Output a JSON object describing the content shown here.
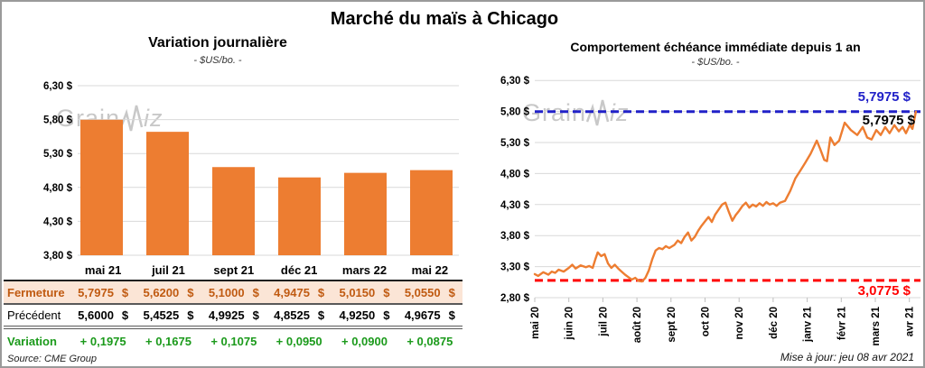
{
  "page": {
    "title": "Marché du maïs à Chicago",
    "watermark_part1": "Grain",
    "watermark_part2": "iz",
    "source_note": "Source: CME Group",
    "update_note": "Mise à jour: jeu 08 avr 2021"
  },
  "colors": {
    "accent_orange": "#ED7D31",
    "fermeture_text": "#C05A11",
    "fermeture_bg": "#FBE5D6",
    "variation_green": "#1B9A1B",
    "blue_line": "#2121C8",
    "red_line": "#FF0000",
    "grid": "#D9D9D9",
    "watermark": "#C8C8C8"
  },
  "chart_data": [
    {
      "type": "bar",
      "title": "Variation journalière",
      "subtitle": "- $US/bo. -",
      "categories": [
        "mai 21",
        "juil 21",
        "sept 21",
        "déc 21",
        "mars 22",
        "mai 22"
      ],
      "values": [
        5.7975,
        5.62,
        5.1,
        4.9475,
        5.015,
        5.055
      ],
      "ylim": [
        3.8,
        6.3
      ],
      "yticks": [
        {
          "value": 6.3,
          "label": "6,30 $"
        },
        {
          "value": 5.8,
          "label": "5,80 $"
        },
        {
          "value": 5.3,
          "label": "5,30 $"
        },
        {
          "value": 4.8,
          "label": "4,80 $"
        },
        {
          "value": 4.3,
          "label": "4,30 $"
        },
        {
          "value": 3.8,
          "label": "3,80 $"
        }
      ],
      "bar_color": "#ED7D31",
      "grid": true
    },
    {
      "type": "line",
      "title": "Comportement échéance immédiate depuis 1 an",
      "subtitle": "- $US/bo. -",
      "x_labels": [
        "mai 20",
        "juin 20",
        "juil 20",
        "août 20",
        "sept 20",
        "oct 20",
        "nov 20",
        "déc 20",
        "janv 21",
        "févr 21",
        "mars 21",
        "avr 21"
      ],
      "ylim": [
        2.8,
        6.3
      ],
      "yticks": [
        {
          "value": 6.3,
          "label": "6,30 $"
        },
        {
          "value": 5.8,
          "label": "5,80 $"
        },
        {
          "value": 5.3,
          "label": "5,30 $"
        },
        {
          "value": 4.8,
          "label": "4,80 $"
        },
        {
          "value": 4.3,
          "label": "4,30 $"
        },
        {
          "value": 3.8,
          "label": "3,80 $"
        },
        {
          "value": 3.3,
          "label": "3,30 $"
        },
        {
          "value": 2.8,
          "label": "2,80 $"
        }
      ],
      "series": [
        {
          "name": "échéance immédiate",
          "color": "#ED7D31",
          "points": [
            [
              0,
              3.18
            ],
            [
              0.1,
              3.15
            ],
            [
              0.25,
              3.21
            ],
            [
              0.4,
              3.17
            ],
            [
              0.5,
              3.22
            ],
            [
              0.6,
              3.2
            ],
            [
              0.7,
              3.25
            ],
            [
              0.85,
              3.22
            ],
            [
              1.0,
              3.28
            ],
            [
              1.1,
              3.33
            ],
            [
              1.2,
              3.27
            ],
            [
              1.35,
              3.32
            ],
            [
              1.5,
              3.29
            ],
            [
              1.6,
              3.31
            ],
            [
              1.7,
              3.28
            ],
            [
              1.78,
              3.42
            ],
            [
              1.85,
              3.53
            ],
            [
              1.95,
              3.47
            ],
            [
              2.05,
              3.5
            ],
            [
              2.15,
              3.35
            ],
            [
              2.25,
              3.28
            ],
            [
              2.35,
              3.33
            ],
            [
              2.45,
              3.27
            ],
            [
              2.55,
              3.22
            ],
            [
              2.65,
              3.17
            ],
            [
              2.75,
              3.13
            ],
            [
              2.85,
              3.09
            ],
            [
              2.95,
              3.12
            ],
            [
              3.05,
              3.07
            ],
            [
              3.15,
              3.06
            ],
            [
              3.25,
              3.12
            ],
            [
              3.35,
              3.24
            ],
            [
              3.45,
              3.42
            ],
            [
              3.55,
              3.56
            ],
            [
              3.65,
              3.6
            ],
            [
              3.75,
              3.58
            ],
            [
              3.85,
              3.63
            ],
            [
              3.95,
              3.6
            ],
            [
              4.1,
              3.65
            ],
            [
              4.2,
              3.72
            ],
            [
              4.3,
              3.68
            ],
            [
              4.4,
              3.78
            ],
            [
              4.5,
              3.85
            ],
            [
              4.6,
              3.72
            ],
            [
              4.7,
              3.78
            ],
            [
              4.8,
              3.88
            ],
            [
              4.9,
              3.96
            ],
            [
              5.0,
              4.03
            ],
            [
              5.1,
              4.1
            ],
            [
              5.2,
              4.02
            ],
            [
              5.3,
              4.14
            ],
            [
              5.4,
              4.22
            ],
            [
              5.5,
              4.3
            ],
            [
              5.6,
              4.33
            ],
            [
              5.7,
              4.18
            ],
            [
              5.8,
              4.04
            ],
            [
              5.9,
              4.13
            ],
            [
              6.0,
              4.2
            ],
            [
              6.1,
              4.28
            ],
            [
              6.2,
              4.33
            ],
            [
              6.3,
              4.25
            ],
            [
              6.4,
              4.3
            ],
            [
              6.5,
              4.27
            ],
            [
              6.6,
              4.32
            ],
            [
              6.7,
              4.28
            ],
            [
              6.8,
              4.34
            ],
            [
              6.9,
              4.3
            ],
            [
              7.0,
              4.32
            ],
            [
              7.1,
              4.28
            ],
            [
              7.2,
              4.33
            ],
            [
              7.35,
              4.36
            ],
            [
              7.5,
              4.52
            ],
            [
              7.65,
              4.72
            ],
            [
              7.8,
              4.85
            ],
            [
              7.95,
              4.98
            ],
            [
              8.1,
              5.12
            ],
            [
              8.28,
              5.33
            ],
            [
              8.38,
              5.2
            ],
            [
              8.5,
              5.02
            ],
            [
              8.58,
              5.0
            ],
            [
              8.68,
              5.38
            ],
            [
              8.8,
              5.26
            ],
            [
              8.94,
              5.33
            ],
            [
              9.1,
              5.62
            ],
            [
              9.28,
              5.5
            ],
            [
              9.47,
              5.42
            ],
            [
              9.63,
              5.55
            ],
            [
              9.76,
              5.38
            ],
            [
              9.89,
              5.35
            ],
            [
              10.03,
              5.5
            ],
            [
              10.16,
              5.42
            ],
            [
              10.29,
              5.55
            ],
            [
              10.42,
              5.45
            ],
            [
              10.56,
              5.58
            ],
            [
              10.69,
              5.48
            ],
            [
              10.8,
              5.55
            ],
            [
              10.9,
              5.45
            ],
            [
              11.01,
              5.58
            ],
            [
              11.09,
              5.52
            ],
            [
              11.19,
              5.7975
            ]
          ]
        }
      ],
      "hlines": [
        {
          "value": 5.7975,
          "label": "5,7975 $",
          "color": "#2121C8"
        },
        {
          "value": 3.0775,
          "label": "3,0775 $",
          "color": "#FF0000"
        }
      ],
      "last_point_label": "5,7975 $",
      "grid": true,
      "legend": false
    }
  ],
  "table": {
    "unit": "$",
    "columns": [
      "mai 21",
      "juil 21",
      "sept 21",
      "déc 21",
      "mars 22",
      "mai 22"
    ],
    "rows": [
      {
        "label": "Fermeture",
        "values": [
          "5,7975",
          "5,6200",
          "5,1000",
          "4,9475",
          "5,0150",
          "5,0550"
        ]
      },
      {
        "label": "Précédent",
        "values": [
          "5,6000",
          "5,4525",
          "4,9925",
          "4,8525",
          "4,9250",
          "4,9675"
        ]
      },
      {
        "label": "Variation",
        "values": [
          "+ 0,1975",
          "+ 0,1675",
          "+ 0,1075",
          "+ 0,0950",
          "+ 0,0900",
          "+ 0,0875"
        ]
      }
    ]
  }
}
